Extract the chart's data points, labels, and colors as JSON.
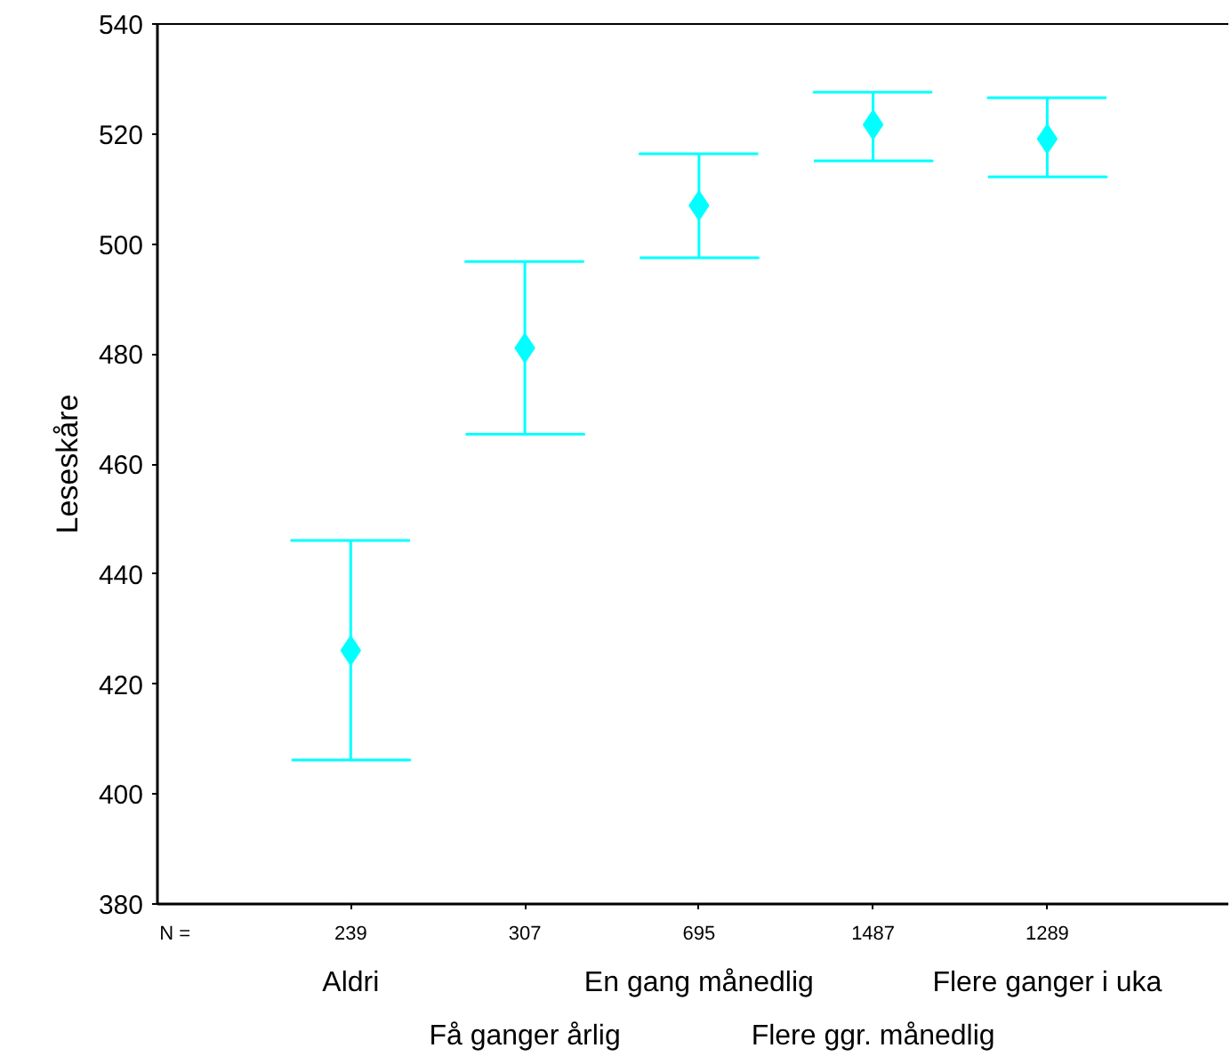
{
  "chart_data": {
    "type": "scatter",
    "ylabel": "Leseskåre",
    "categories": [
      "Aldri",
      "Få ganger årlig",
      "En gang månedlig",
      "Flere ggr. månedlig",
      "Flere ganger i uka"
    ],
    "values": [
      426.1,
      481.1,
      507.0,
      521.7,
      519.1
    ],
    "errors": [
      [
        406.2,
        446.1
      ],
      [
        465.4,
        496.8
      ],
      [
        497.5,
        516.4
      ],
      [
        515.1,
        527.6
      ],
      [
        512.2,
        526.6
      ]
    ],
    "color": "#00ffff",
    "marker": "diamond",
    "grid": false,
    "ylim": [
      380,
      540
    ],
    "yticks": [
      380,
      400,
      420,
      440,
      460,
      480,
      500,
      520,
      540
    ],
    "annotations": [
      "N =",
      {
        "text": "239",
        "x": "Aldri"
      },
      {
        "text": "307",
        "x": "Få ganger årlig"
      },
      {
        "text": "695",
        "x": "En gang månedlig"
      },
      {
        "text": "1487",
        "x": "Flere ggr. månedlig"
      },
      {
        "text": "1289",
        "x": "Flere ganger i uka"
      }
    ]
  }
}
